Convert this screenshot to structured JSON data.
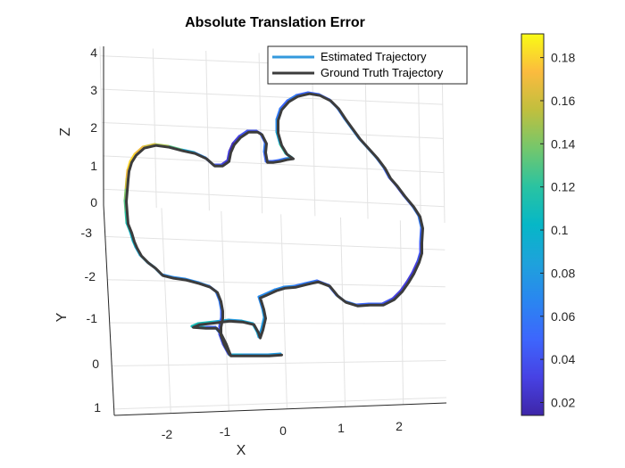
{
  "chart_data": {
    "type": "line",
    "title": "Absolute Translation Error",
    "xlabel": "X",
    "ylabel": "Y",
    "zlabel": "Z",
    "x_ticks": [
      "-2",
      "-1",
      "0",
      "1",
      "2"
    ],
    "y_ticks": [
      "1",
      "0",
      "-1",
      "-2",
      "-3"
    ],
    "z_ticks": [
      "0",
      "1",
      "2",
      "3",
      "4"
    ],
    "legend_placement": "top-right",
    "grid": true,
    "colorbar": {
      "ticks": [
        "0.02",
        "0.04",
        "0.06",
        "0.08",
        "0.1",
        "0.12",
        "0.14",
        "0.16",
        "0.18"
      ],
      "range": [
        0.014,
        0.191
      ],
      "colormap": "parula"
    },
    "series": [
      {
        "name": "Estimated Trajectory",
        "color": "#3399dd",
        "colored_by_error": true,
        "error_values": [
          0.08,
          0.08,
          0.08,
          0.09,
          0.09,
          0.08,
          0.06,
          0.05,
          0.09,
          0.11,
          0.11,
          0.09,
          0.08,
          0.09,
          0.09,
          0.09,
          0.08,
          0.08,
          0.08,
          0.07,
          0.07,
          0.07,
          0.07,
          0.07,
          0.06,
          0.06,
          0.05,
          0.05,
          0.06,
          0.06,
          0.05,
          0.05,
          0.04,
          0.03,
          0.03,
          0.03,
          0.03,
          0.04,
          0.04,
          0.05,
          0.06,
          0.06,
          0.05,
          0.04,
          0.04,
          0.05,
          0.06,
          0.07,
          0.07,
          0.07,
          0.07,
          0.06,
          0.06,
          0.05,
          0.05,
          0.05,
          0.06,
          0.05,
          0.06,
          0.07,
          0.09,
          0.12,
          0.11,
          0.08,
          0.06,
          0.05,
          0.05,
          0.05,
          0.06,
          0.05,
          0.04,
          0.04,
          0.04,
          0.03,
          0.02,
          0.03,
          0.03,
          0.04,
          0.05,
          0.07,
          0.09,
          0.13,
          0.15,
          0.16,
          0.17,
          0.18,
          0.18,
          0.17,
          0.16,
          0.14,
          0.13,
          0.12,
          0.11,
          0.1,
          0.1,
          0.09,
          0.09,
          0.08,
          0.08,
          0.07,
          0.07,
          0.07,
          0.07,
          0.06,
          0.06,
          0.06,
          0.05,
          0.05,
          0.04,
          0.04,
          0.04,
          0.04,
          0.03,
          0.03,
          0.04,
          0.04,
          0.03,
          0.03,
          0.04,
          0.04,
          0.05,
          0.05,
          0.06,
          0.06,
          0.07,
          0.1,
          0.13,
          0.12,
          0.11,
          0.09,
          0.08,
          0.07,
          0.07,
          0.08
        ]
      },
      {
        "name": "Ground Truth Trajectory",
        "color": "#3c3c3c"
      }
    ]
  }
}
